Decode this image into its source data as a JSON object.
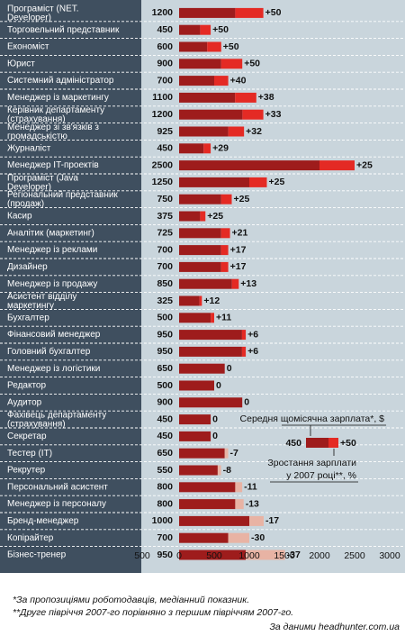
{
  "chart_data": {
    "type": "bar",
    "categories": [
      "Програміст (NET. Developer)",
      "Торговельний представник",
      "Економіст",
      "Юрист",
      "Системний адміністратор",
      "Менеджер із маркетингу",
      "Керівник департаменту (страхування)",
      "Менеджер зі зв'язків з громадськістю",
      "Журналіст",
      "Менеджер IT-проектів",
      "Програміст (Java Developer)",
      "Регіональний представник (продаж)",
      "Касир",
      "Аналітик (маркетинг)",
      "Менеджер із реклами",
      "Дизайнер",
      "Менеджер із продажу",
      "Асистент відділу маркетингу",
      "Бухгалтер",
      "Фінансовий менеджер",
      "Головний бухгалтер",
      "Менеджер із логістики",
      "Редактор",
      "Аудитор",
      "Фахівець департаменту (страхування)",
      "Секретар",
      "Тестер (IT)",
      "Рекрутер",
      "Персональний асистент",
      "Менеджер із персоналу",
      "Бренд-менеджер",
      "Копірайтер",
      "Бізнес-тренер"
    ],
    "series": [
      {
        "name": "Середня щомісячна зарплата*, $",
        "values": [
          1200,
          450,
          600,
          900,
          700,
          1100,
          1200,
          925,
          450,
          2500,
          1250,
          750,
          375,
          725,
          700,
          700,
          850,
          325,
          500,
          950,
          950,
          650,
          500,
          900,
          450,
          450,
          650,
          550,
          800,
          800,
          1000,
          700,
          950
        ]
      },
      {
        "name": "Зростання зарплати у 2007 році**, %",
        "values": [
          50,
          50,
          50,
          50,
          40,
          38,
          33,
          32,
          29,
          25,
          25,
          25,
          25,
          21,
          17,
          17,
          13,
          12,
          11,
          6,
          6,
          0,
          0,
          0,
          0,
          0,
          -7,
          -8,
          -11,
          -13,
          -17,
          -30,
          -37
        ]
      }
    ],
    "change_labels": [
      "+50",
      "+50",
      "+50",
      "+50",
      "+40",
      "+38",
      "+33",
      "+32",
      "+29",
      "+25",
      "+25",
      "+25",
      "+25",
      "+21",
      "+17",
      "+17",
      "+13",
      "+12",
      "+11",
      "+6",
      "+6",
      "0",
      "0",
      "0",
      "0",
      "0",
      "-7",
      "-8",
      "-11",
      "-13",
      "-17",
      "-30",
      "-37"
    ],
    "x_ticks": [
      "500",
      "0",
      "500",
      "1000",
      "1500",
      "2000",
      "2500",
      "3000"
    ],
    "xlim": [
      -500,
      3000
    ],
    "grid": false,
    "legend": {
      "position": "middle-right",
      "salary_label": "Середня щомісячна зарплата*, $",
      "example_value": "450",
      "example_change": "+50",
      "growth_label_line1": "Зростання зарплати",
      "growth_label_line2": "у 2007 році**, %"
    },
    "colors": {
      "panel": "#c9d5dc",
      "label_column": "#3f4f5f",
      "bar_base": "#9e1c1c",
      "bar_increase": "#e42a24",
      "bar_decrease": "#e8b3a4",
      "separator": "#ffffff"
    }
  },
  "footnotes": {
    "note1": "*За пропозиціями роботодавців, медіанний показник.",
    "note2": "**Друге півріччя 2007-го порівняно з першим півріччям 2007-го.",
    "source": "За даними headhunter.com.ua"
  }
}
